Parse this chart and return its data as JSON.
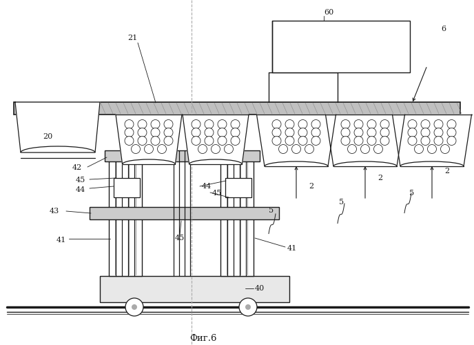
{
  "bg": "#ffffff",
  "lc": "#1a1a1a",
  "fig_caption": "Фиг.6"
}
